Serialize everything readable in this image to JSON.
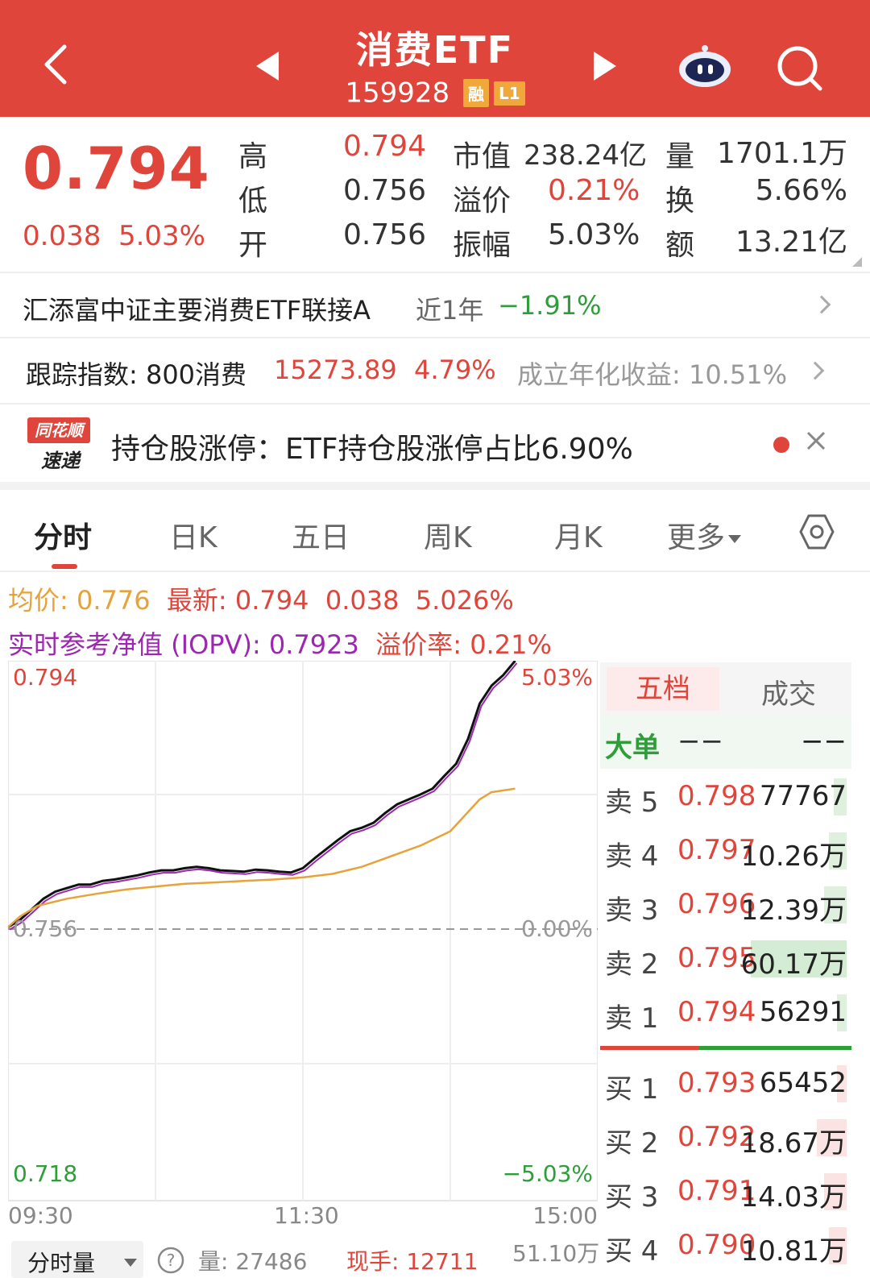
{
  "header": {
    "title": "消费ETF",
    "code": "159928",
    "badge_margin": "融",
    "badge_level": "L1"
  },
  "quote": {
    "price": "0.794",
    "change": "0.038",
    "change_pct": "5.03%",
    "high_label": "高",
    "high": "0.794",
    "low_label": "低",
    "low": "0.756",
    "open_label": "开",
    "open": "0.756",
    "mktcap_label": "市值",
    "mktcap": "238.24亿",
    "premium_label": "溢价",
    "premium": "0.21%",
    "amplitude_label": "振幅",
    "amplitude": "5.03%",
    "volume_label": "量",
    "volume": "1701.1万",
    "turnover_label": "换",
    "turnover": "5.66%",
    "amount_label": "额",
    "amount": "13.21亿"
  },
  "fund": {
    "name": "汇添富中证主要消费ETF联接A",
    "period_label": "近1年",
    "period_return": "−1.91%"
  },
  "index": {
    "label": "跟踪指数: 800消费",
    "value": "15273.89",
    "change_pct": "4.79%",
    "annualized": "成立年化收益: 10.51%"
  },
  "news": {
    "logo_top": "同花顺",
    "logo_bottom": "速递",
    "text": "持仓股涨停：ETF持仓股涨停占比6.90%"
  },
  "tabs": [
    {
      "label": "分时"
    },
    {
      "label": "日K"
    },
    {
      "label": "五日"
    },
    {
      "label": "周K"
    },
    {
      "label": "月K"
    },
    {
      "label": "更多"
    }
  ],
  "info": {
    "avg": "均价: 0.776",
    "latest": "最新: 0.794",
    "chg": "0.038",
    "chg_pct": "5.026%",
    "iopv": "实时参考净值 (IOPV): 0.7923",
    "premium_rate": "溢价率: 0.21%"
  },
  "chart_labels": {
    "y_top": "0.794",
    "y_mid": "0.756",
    "y_bot": "0.718",
    "pct_top": "5.03%",
    "pct_mid": "0.00%",
    "pct_bot": "−5.03%",
    "t_start": "09:30",
    "t_mid": "11:30",
    "t_end": "15:00"
  },
  "chart_data": {
    "type": "line",
    "ylim": [
      0.718,
      0.794
    ],
    "baseline": 0.756,
    "grid": true,
    "series": [
      {
        "name": "",
        "color": "#111111",
        "x": [
          0,
          0.02,
          0.04,
          0.06,
          0.08,
          0.1,
          0.12,
          0.14,
          0.16,
          0.18,
          0.2,
          0.22,
          0.24,
          0.26,
          0.28,
          0.3,
          0.32,
          0.34,
          0.36,
          0.38,
          0.4,
          0.42,
          0.44,
          0.46,
          0.48,
          0.5,
          0.52,
          0.54,
          0.56,
          0.58,
          0.6,
          0.62,
          0.64,
          0.66,
          0.68,
          0.7,
          0.72,
          0.74,
          0.76,
          0.78,
          0.8,
          0.82,
          0.84,
          0.86
        ],
        "y": [
          0.7565,
          0.7575,
          0.759,
          0.7605,
          0.7615,
          0.762,
          0.7625,
          0.7625,
          0.763,
          0.7632,
          0.7635,
          0.7638,
          0.7642,
          0.7645,
          0.7645,
          0.7648,
          0.765,
          0.7648,
          0.7645,
          0.7644,
          0.7643,
          0.7646,
          0.7645,
          0.7643,
          0.7642,
          0.7648,
          0.7662,
          0.7675,
          0.7688,
          0.77,
          0.7705,
          0.7712,
          0.7726,
          0.7738,
          0.7745,
          0.7752,
          0.776,
          0.7778,
          0.7795,
          0.783,
          0.788,
          0.7905,
          0.792,
          0.794
        ]
      },
      {
        "name": "",
        "color": "#e8a23a",
        "x": [
          0,
          0.02,
          0.05,
          0.1,
          0.15,
          0.2,
          0.25,
          0.3,
          0.35,
          0.4,
          0.45,
          0.5,
          0.55,
          0.6,
          0.65,
          0.7,
          0.75,
          0.8,
          0.82,
          0.86
        ],
        "y": [
          0.7565,
          0.758,
          0.7595,
          0.7605,
          0.7612,
          0.7618,
          0.7622,
          0.7626,
          0.7628,
          0.763,
          0.7632,
          0.7635,
          0.764,
          0.765,
          0.7665,
          0.768,
          0.77,
          0.7745,
          0.7755,
          0.776
        ]
      }
    ]
  },
  "book": {
    "tab_active": "五档",
    "tab_other": "成交",
    "bigorder_label": "大单",
    "bigorder_left": "−−",
    "bigorder_right": "−−",
    "asks": [
      {
        "label": "卖 5",
        "price": "0.798",
        "vol": "77767",
        "bar": 0.05,
        "color": "#dff0df"
      },
      {
        "label": "卖 4",
        "price": "0.797",
        "vol": "10.26万",
        "bar": 0.07,
        "color": "#dff0df"
      },
      {
        "label": "卖 3",
        "price": "0.796",
        "vol": "12.39万",
        "bar": 0.09,
        "color": "#dff0df"
      },
      {
        "label": "卖 2",
        "price": "0.795",
        "vol": "60.17万",
        "bar": 0.38,
        "color": "#d4ecd4"
      },
      {
        "label": "卖 1",
        "price": "0.794",
        "vol": "56291",
        "bar": 0.04,
        "color": "#dff0df"
      }
    ],
    "bids": [
      {
        "label": "买 1",
        "price": "0.793",
        "vol": "65452",
        "bar": 0.04,
        "color": "#fbe3e3"
      },
      {
        "label": "买 2",
        "price": "0.792",
        "vol": "18.67万",
        "bar": 0.12,
        "color": "#fbe3e3"
      },
      {
        "label": "买 3",
        "price": "0.791",
        "vol": "14.03万",
        "bar": 0.09,
        "color": "#fbe3e3"
      },
      {
        "label": "买 4",
        "price": "0.790",
        "vol": "10.81万",
        "bar": 0.07,
        "color": "#fbe3e3"
      }
    ]
  },
  "bottom": {
    "selector": "分时量",
    "volume": "量: 27486",
    "current_hand": "现手: 12711",
    "right_value": "51.10万"
  },
  "colors": {
    "brand": "#e0453b",
    "up": "#e0453b",
    "down": "#2e9d3a",
    "avg": "#e8a23a",
    "iopv": "#9c27b0"
  }
}
